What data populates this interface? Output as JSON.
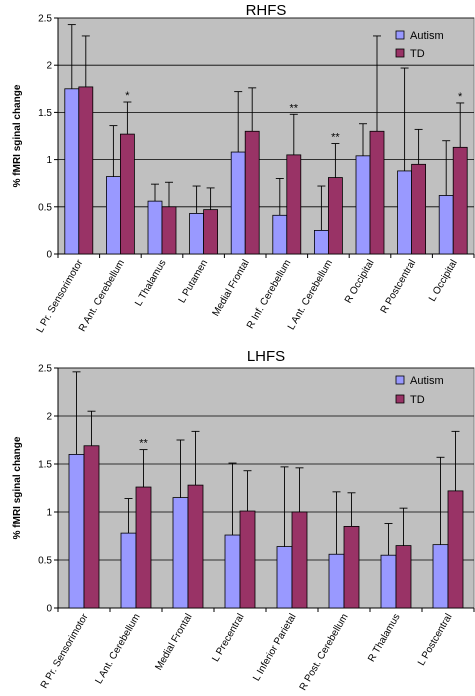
{
  "chart_data": [
    {
      "type": "bar",
      "title": "RHFS",
      "ylabel": "% fMRI sginal change",
      "ylim": [
        0,
        2.5
      ],
      "yticks": [
        "0",
        "0.5",
        "1",
        "1.5",
        "2",
        "2.5"
      ],
      "ytick_values": [
        0,
        0.5,
        1,
        1.5,
        2,
        2.5
      ],
      "grid": true,
      "legend_position": "top-right",
      "categories": [
        "L Pr. Sensorimotor",
        "R Ant. Cerebellum",
        "L Thalamus",
        "L Putamen",
        "Medial Frontal",
        "R Inf. Cerebellum",
        "L Ant. Cerebellum",
        "R Occipital",
        "R Postcentral",
        "L Occipital"
      ],
      "series": [
        {
          "name": "Autism",
          "color": "#9999ff",
          "values": [
            1.75,
            0.82,
            0.56,
            0.43,
            1.08,
            0.41,
            0.25,
            1.04,
            0.88,
            0.62
          ],
          "errors": [
            0.68,
            0.54,
            0.18,
            0.29,
            0.64,
            0.39,
            0.47,
            0.34,
            1.09,
            0.58
          ]
        },
        {
          "name": "TD",
          "color": "#993366",
          "values": [
            1.77,
            1.27,
            0.5,
            0.47,
            1.3,
            1.05,
            0.81,
            1.3,
            0.95,
            1.13
          ],
          "errors": [
            0.54,
            0.34,
            0.26,
            0.23,
            0.46,
            0.43,
            0.36,
            1.01,
            0.37,
            0.47
          ]
        }
      ],
      "annotations": [
        {
          "category": "R Ant. Cerebellum",
          "text": "*"
        },
        {
          "category": "R Inf. Cerebellum",
          "text": "**"
        },
        {
          "category": "L Ant. Cerebellum",
          "text": "**"
        },
        {
          "category": "L Occipital",
          "text": "*"
        }
      ]
    },
    {
      "type": "bar",
      "title": "LHFS",
      "ylabel": "% fMRI sginal change",
      "ylim": [
        0,
        2.5
      ],
      "yticks": [
        "0",
        "0.5",
        "1",
        "1.5",
        "2",
        "2.5"
      ],
      "ytick_values": [
        0,
        0.5,
        1,
        1.5,
        2,
        2.5
      ],
      "grid": true,
      "legend_position": "top-right",
      "categories": [
        "R Pr. Sensorimotor",
        "L Ant. Cerebellum",
        "Medial Frontal",
        "L Precentral",
        "L Inferior Parietal",
        "R Post. Cerebellum",
        "R Thalamus",
        "L Postcentral"
      ],
      "series": [
        {
          "name": "Autism",
          "color": "#9999ff",
          "values": [
            1.6,
            0.78,
            1.15,
            0.76,
            0.64,
            0.56,
            0.55,
            0.66
          ],
          "errors": [
            0.86,
            0.36,
            0.6,
            0.75,
            0.83,
            0.65,
            0.33,
            0.91
          ]
        },
        {
          "name": "TD",
          "color": "#993366",
          "values": [
            1.69,
            1.26,
            1.28,
            1.01,
            1.0,
            0.85,
            0.65,
            1.22
          ],
          "errors": [
            0.36,
            0.39,
            0.56,
            0.42,
            0.46,
            0.35,
            0.39,
            0.62
          ]
        }
      ],
      "annotations": [
        {
          "category": "L Ant. Cerebellum",
          "text": "**"
        }
      ]
    }
  ]
}
